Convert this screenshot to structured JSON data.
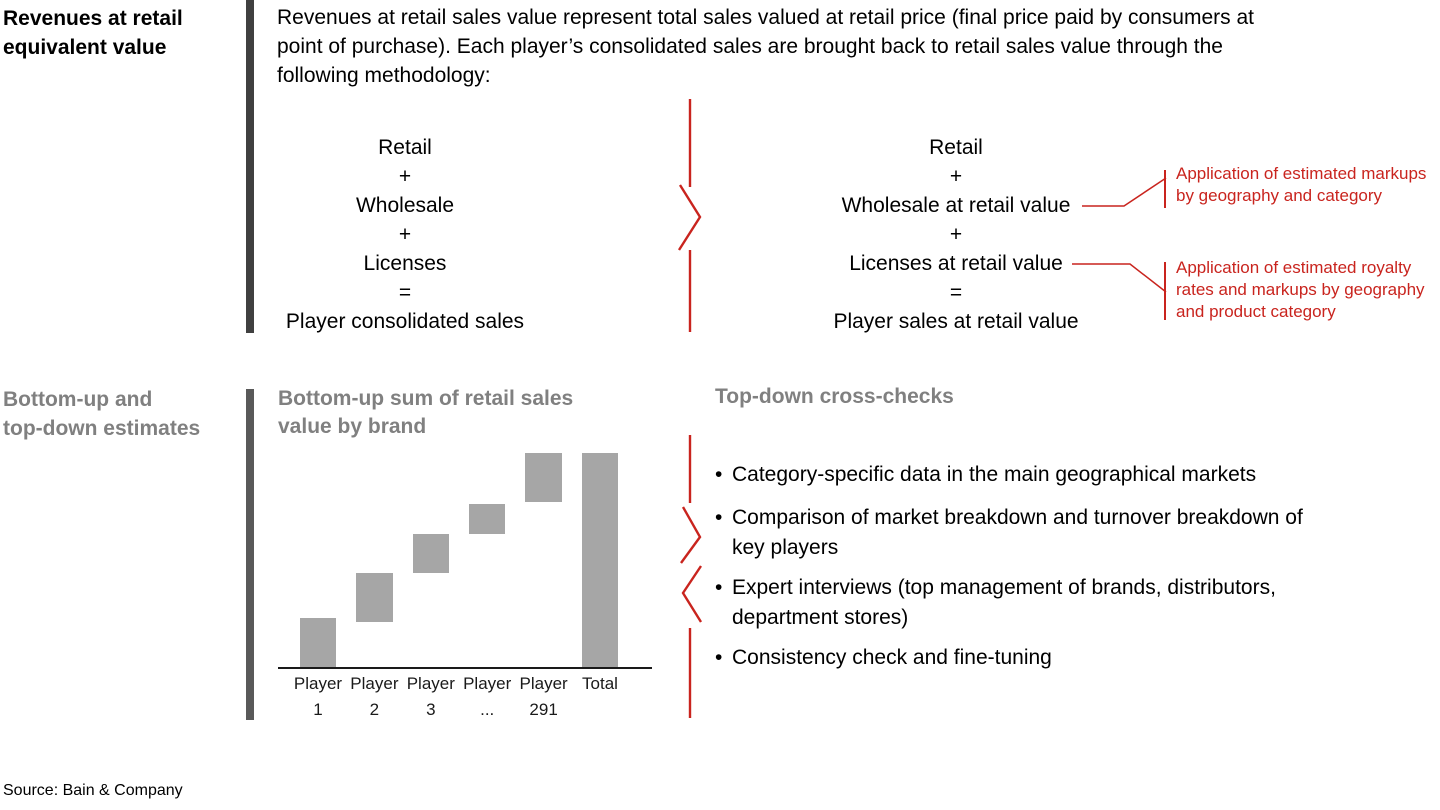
{
  "colors": {
    "red": "#c9241e",
    "heading_gray": "#808080",
    "bar_gray": "#a6a6a6",
    "divider_dark": "#404040",
    "divider_medium": "#595959",
    "axis_black": "#1a1a1a"
  },
  "section_revenues": {
    "sidebar_title_lines": [
      "Revenues at retail",
      "equivalent value"
    ],
    "intro_lines": [
      "Revenues at retail sales value represent total sales valued at retail price (final price paid by consumers at",
      "point of purchase). Each player’s consolidated sales are brought back to retail sales value through the",
      "following methodology:"
    ],
    "consolidated_formula_rows": [
      "Retail",
      "+",
      "Wholesale",
      "+",
      "Licenses",
      "=",
      "Player consolidated sales"
    ],
    "retail_value_formula_rows": [
      "Retail",
      "+",
      "Wholesale at retail value",
      "+",
      "Licenses at retail value",
      "=",
      "Player sales at retail value"
    ],
    "annotation_markups_lines": [
      "Application of estimated markups",
      "by geography and category"
    ],
    "annotation_royalty_lines": [
      "Application of estimated royalty",
      "rates and markups by geography",
      "and product category"
    ]
  },
  "section_estimates": {
    "sidebar_title_lines": [
      "Bottom-up and",
      "top-down estimates"
    ],
    "chart_title_lines": [
      "Bottom-up sum of retail sales",
      "value by brand"
    ],
    "crosschecks_title": "Top-down cross-checks",
    "bullet_glyph": "•",
    "crosschecks_bullets": [
      {
        "lines": [
          "Category-specific data in the main geographical markets"
        ]
      },
      {
        "lines": [
          "Comparison of market breakdown and turnover breakdown of",
          "key players"
        ]
      },
      {
        "lines": [
          "Expert interviews (top management of brands, distributors,",
          "department stores)"
        ]
      },
      {
        "lines": [
          "Consistency check and fine-tuning"
        ]
      }
    ]
  },
  "chart_data": {
    "type": "bar",
    "subtype": "waterfall",
    "title": "Bottom-up sum of retail sales value by brand",
    "categories": [
      "Player 1",
      "Player 2",
      "Player 3",
      "Player ...",
      "Player 291",
      "Total"
    ],
    "label_lines": [
      [
        "Player",
        "1"
      ],
      [
        "Player",
        "2"
      ],
      [
        "Player",
        "3"
      ],
      [
        "Player",
        "..."
      ],
      [
        "Player",
        "291"
      ],
      [
        "Total"
      ]
    ],
    "segments_pct_of_total": [
      [
        0,
        23
      ],
      [
        21,
        44
      ],
      [
        44,
        62
      ],
      [
        62,
        76
      ],
      [
        77,
        100
      ],
      [
        0,
        100
      ]
    ],
    "ylim": [
      0,
      100
    ],
    "y_axis_visible": false,
    "value_labels_visible": false,
    "bar_color": "#a6a6a6",
    "axis_color": "#1a1a1a"
  },
  "footer": {
    "source": "Source: Bain & Company"
  }
}
